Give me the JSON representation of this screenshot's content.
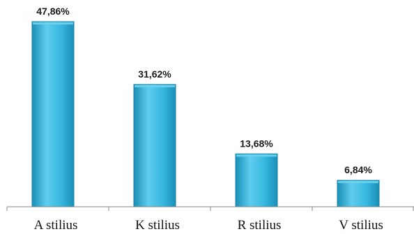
{
  "chart_data": {
    "type": "bar",
    "categories": [
      "A stilius",
      "K stilius",
      "R stilius",
      "V stilius"
    ],
    "values": [
      47.86,
      31.62,
      13.68,
      6.84
    ],
    "data_labels": [
      "47,86%",
      "31,62%",
      "13,68%",
      "6,84%"
    ],
    "title": "",
    "xlabel": "",
    "ylabel": "",
    "ylim": [
      0,
      50
    ],
    "grid": false,
    "legend": "none",
    "colors": {
      "bar_light": "#6fd3ef",
      "bar_mid": "#31b4dc",
      "bar_dark": "#1787ad",
      "axis": "#888888"
    }
  }
}
